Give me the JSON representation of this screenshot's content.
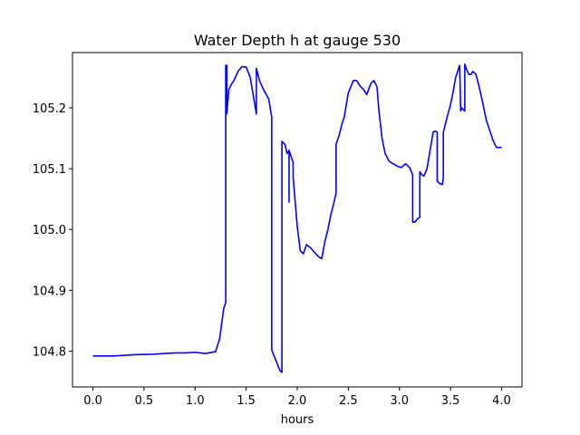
{
  "chart_data": {
    "type": "line",
    "title": "Water Depth h at gauge 530",
    "xlabel": "hours",
    "ylabel": "",
    "xlim": [
      -0.2,
      4.2
    ],
    "ylim": [
      104.741,
      105.291
    ],
    "xticks": [
      0.0,
      0.5,
      1.0,
      1.5,
      2.0,
      2.5,
      3.0,
      3.5,
      4.0
    ],
    "xtick_labels": [
      "0.0",
      "0.5",
      "1.0",
      "1.5",
      "2.0",
      "2.5",
      "3.0",
      "3.5",
      "4.0"
    ],
    "yticks": [
      104.8,
      104.9,
      105.0,
      105.1,
      105.2
    ],
    "ytick_labels": [
      "104.8",
      "104.9",
      "105.0",
      "105.1",
      "105.2"
    ],
    "grid": false,
    "series": [
      {
        "color": "#0000ff",
        "x": [
          0.0,
          0.2,
          0.4,
          0.6,
          0.7,
          0.8,
          0.9,
          1.0,
          1.05,
          1.1,
          1.2,
          1.24,
          1.28,
          1.3,
          1.3,
          1.31,
          1.31,
          1.33,
          1.36,
          1.38,
          1.42,
          1.46,
          1.5,
          1.54,
          1.58,
          1.6,
          1.6,
          1.63,
          1.67,
          1.72,
          1.75,
          1.75,
          1.79,
          1.83,
          1.85,
          1.85,
          1.88,
          1.9,
          1.9,
          1.92,
          1.92,
          1.92,
          1.96,
          1.96,
          2.0,
          2.03,
          2.06,
          2.09,
          2.13,
          2.17,
          2.21,
          2.24,
          2.27,
          2.3,
          2.33,
          2.36,
          2.38,
          2.38,
          2.41,
          2.44,
          2.46,
          2.5,
          2.55,
          2.58,
          2.62,
          2.65,
          2.68,
          2.72,
          2.75,
          2.78,
          2.8,
          2.83,
          2.86,
          2.9,
          2.94,
          2.98,
          3.02,
          3.06,
          3.1,
          3.13,
          3.13,
          3.15,
          3.18,
          3.2,
          3.2,
          3.22,
          3.24,
          3.27,
          3.3,
          3.33,
          3.35,
          3.37,
          3.37,
          3.39,
          3.42,
          3.43,
          3.43,
          3.46,
          3.5,
          3.53,
          3.55,
          3.59,
          3.6,
          3.61,
          3.64,
          3.64,
          3.66,
          3.68,
          3.7,
          3.72,
          3.75,
          3.78,
          3.82,
          3.85,
          3.88,
          3.92,
          3.95,
          3.98,
          4.0
        ],
        "y": [
          104.792,
          104.792,
          104.794,
          104.795,
          104.796,
          104.797,
          104.797,
          104.798,
          104.797,
          104.796,
          104.799,
          104.82,
          104.87,
          104.88,
          105.27,
          105.27,
          105.19,
          105.23,
          105.24,
          105.245,
          105.26,
          105.268,
          105.267,
          105.25,
          105.21,
          105.19,
          105.265,
          105.245,
          105.23,
          105.215,
          105.185,
          104.802,
          104.785,
          104.768,
          104.765,
          105.145,
          105.14,
          105.125,
          105.125,
          105.13,
          105.045,
          105.13,
          105.11,
          105.085,
          105.005,
          104.965,
          104.96,
          104.975,
          104.97,
          104.962,
          104.955,
          104.952,
          104.98,
          105.0,
          105.025,
          105.045,
          105.06,
          105.14,
          105.155,
          105.175,
          105.185,
          105.225,
          105.245,
          105.245,
          105.235,
          105.23,
          105.222,
          105.24,
          105.245,
          105.235,
          105.195,
          105.15,
          105.125,
          105.112,
          105.108,
          105.104,
          105.102,
          105.108,
          105.102,
          105.09,
          105.012,
          105.012,
          105.018,
          105.02,
          105.095,
          105.09,
          105.088,
          105.1,
          105.13,
          105.16,
          105.162,
          105.16,
          105.08,
          105.076,
          105.074,
          105.085,
          105.16,
          105.18,
          105.205,
          105.23,
          105.25,
          105.27,
          105.195,
          105.2,
          105.195,
          105.272,
          105.262,
          105.255,
          105.255,
          105.26,
          105.255,
          105.235,
          105.205,
          105.18,
          105.165,
          105.145,
          105.135,
          105.135,
          105.135
        ]
      }
    ]
  }
}
